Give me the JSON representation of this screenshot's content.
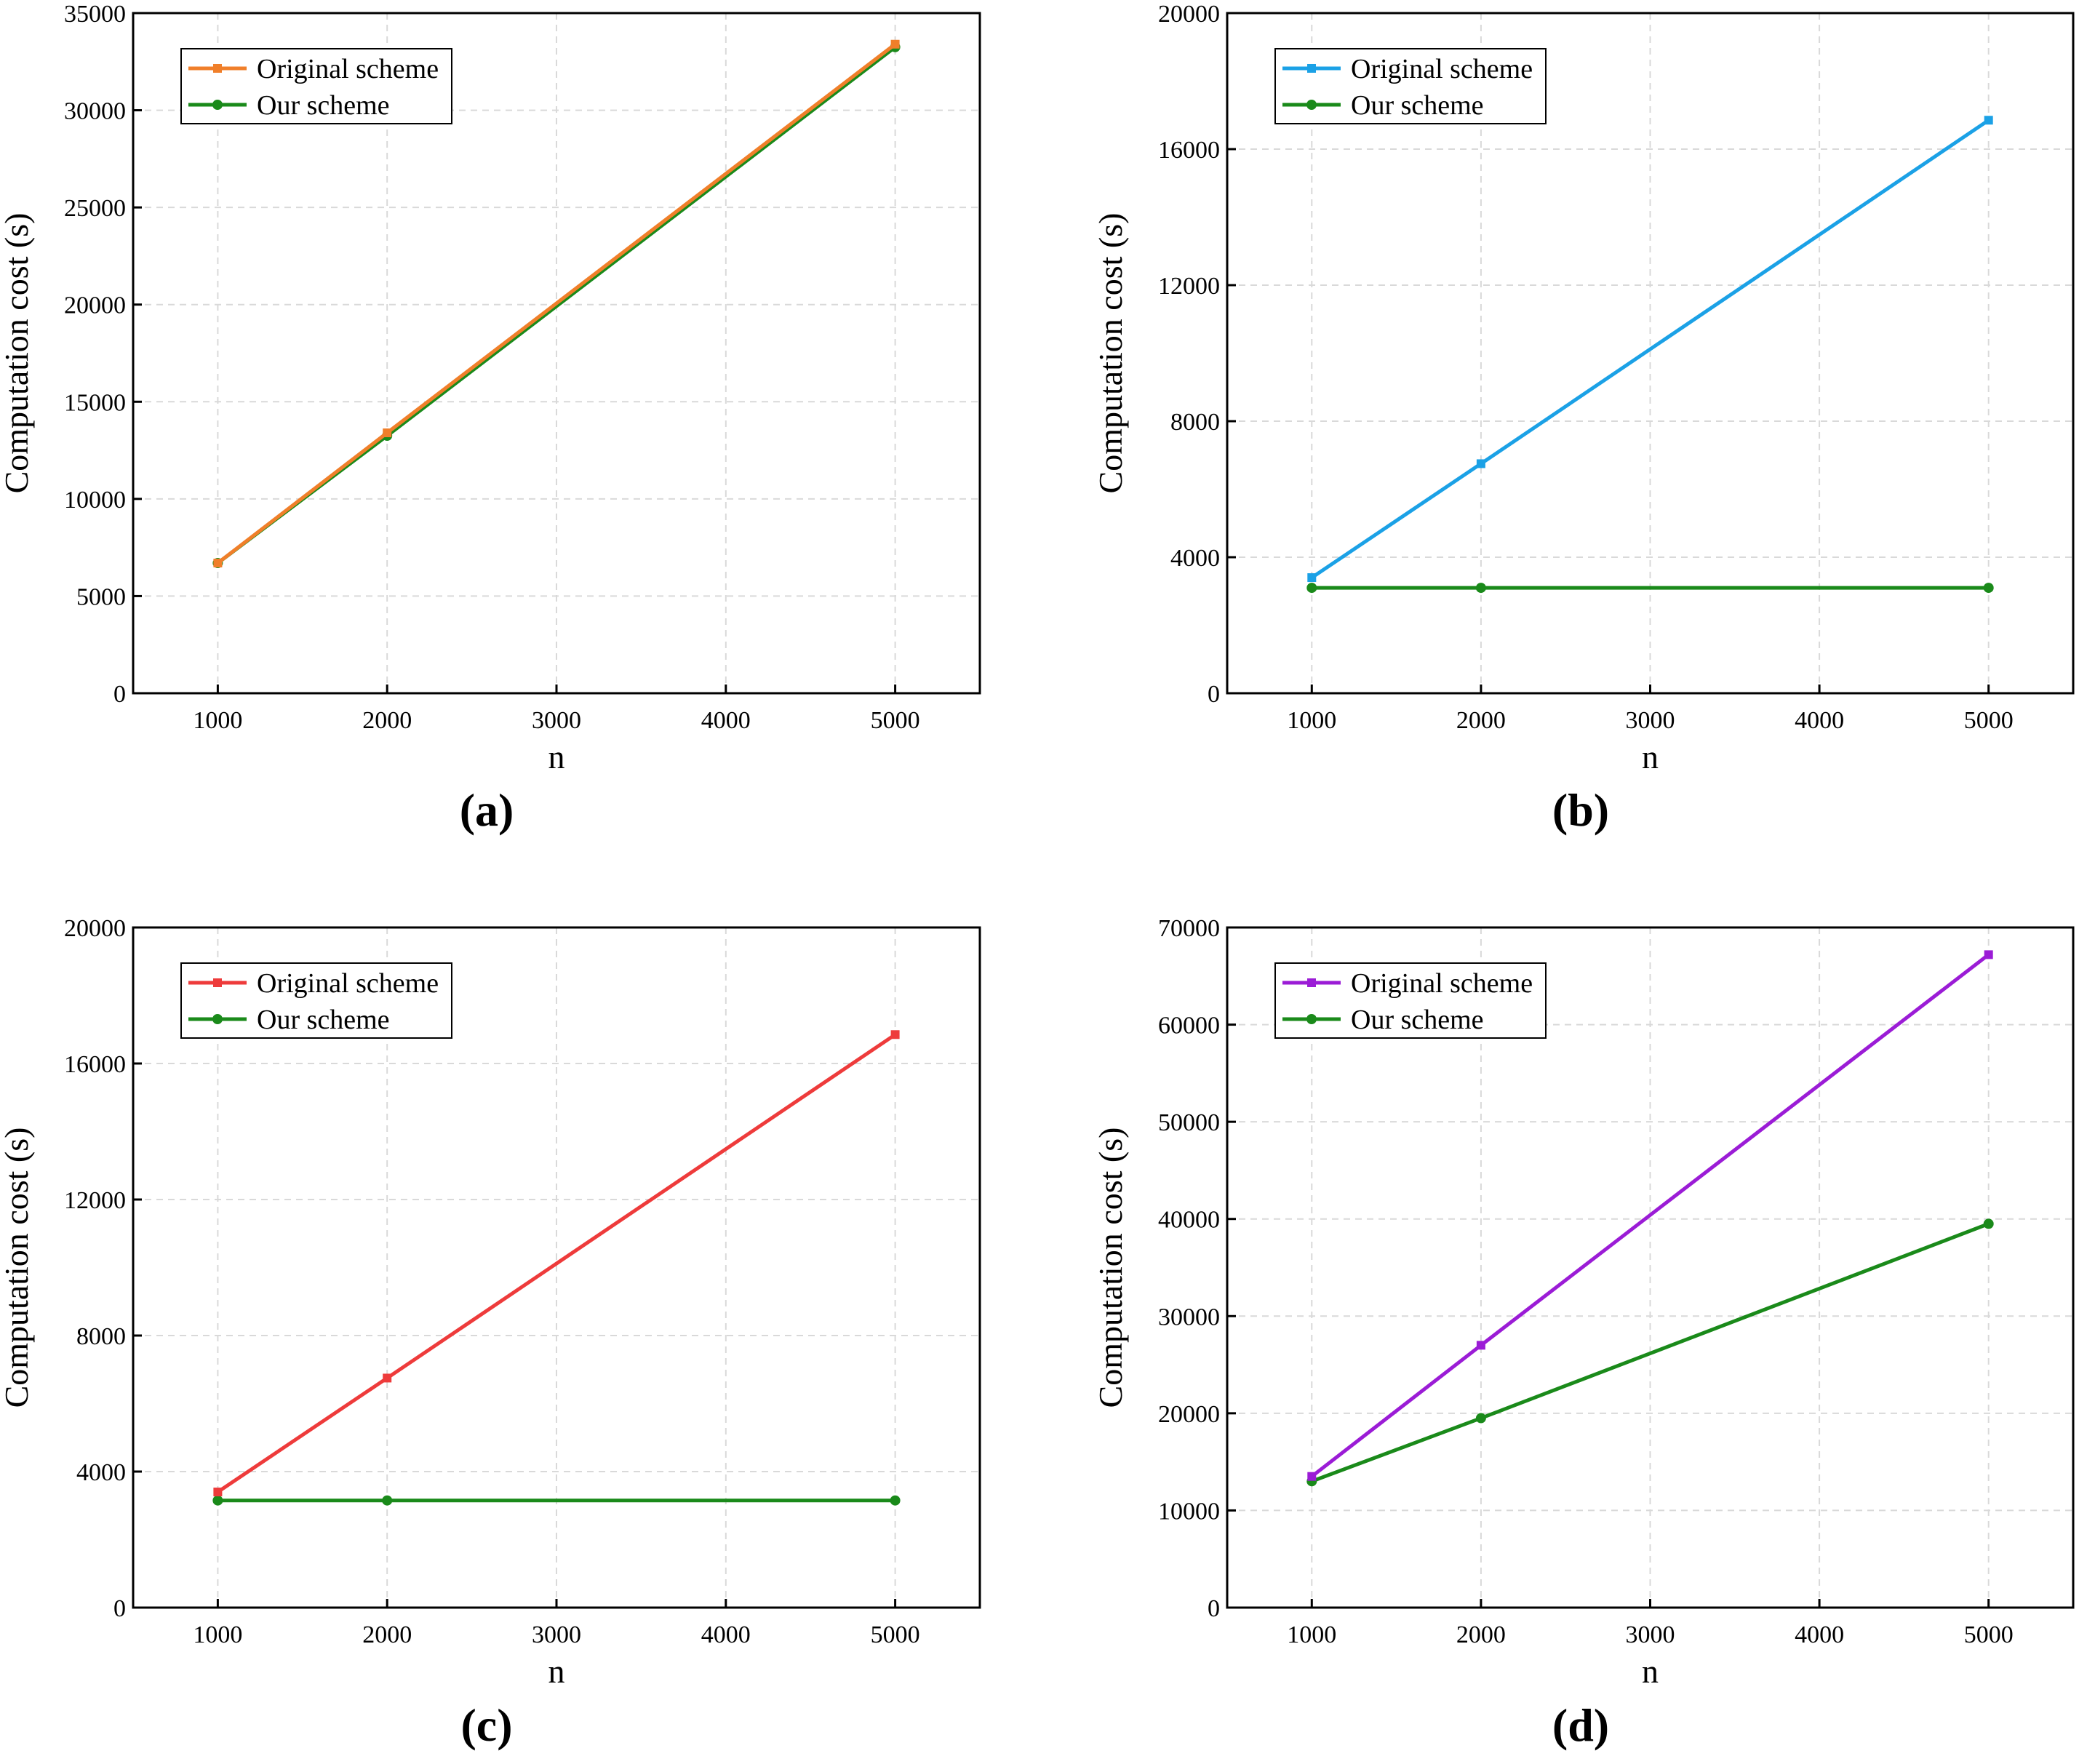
{
  "chart_data": [
    {
      "type": "line",
      "panel_label": "(a)",
      "xlabel": "n",
      "ylabel": "Computation cost (s)",
      "x": [
        1000,
        2000,
        5000
      ],
      "xticks": [
        "1000",
        "2000",
        "3000",
        "4000",
        "5000"
      ],
      "yticks": [
        "0",
        "5000",
        "10000",
        "15000",
        "20000",
        "25000",
        "30000",
        "35000"
      ],
      "xlim": [
        500,
        5500
      ],
      "ylim": [
        0,
        35000
      ],
      "legend_position": "top-left",
      "series": [
        {
          "name": "Original scheme",
          "color": "#f07f2a",
          "marker": "square",
          "values": [
            6700,
            13400,
            33400
          ]
        },
        {
          "name": "Our scheme",
          "color": "#1a8a1a",
          "marker": "circle",
          "values": [
            6700,
            13250,
            33250
          ]
        }
      ]
    },
    {
      "type": "line",
      "panel_label": "(b)",
      "xlabel": "n",
      "ylabel": "Computation cost (s)",
      "x": [
        1000,
        2000,
        5000
      ],
      "xticks": [
        "1000",
        "2000",
        "3000",
        "4000",
        "5000"
      ],
      "yticks": [
        "0",
        "4000",
        "8000",
        "12000",
        "16000",
        "20000"
      ],
      "xlim": [
        500,
        5500
      ],
      "ylim": [
        0,
        20000
      ],
      "legend_position": "top-left",
      "series": [
        {
          "name": "Original scheme",
          "color": "#1ba1e6",
          "marker": "square",
          "values": [
            3400,
            6750,
            16850
          ]
        },
        {
          "name": "Our scheme",
          "color": "#1a8a1a",
          "marker": "circle",
          "values": [
            3100,
            3100,
            3100
          ]
        }
      ]
    },
    {
      "type": "line",
      "panel_label": "(c)",
      "xlabel": "n",
      "ylabel": "Computation cost (s)",
      "x": [
        1000,
        2000,
        5000
      ],
      "xticks": [
        "1000",
        "2000",
        "3000",
        "4000",
        "5000"
      ],
      "yticks": [
        "0",
        "4000",
        "8000",
        "12000",
        "16000",
        "20000"
      ],
      "xlim": [
        500,
        5500
      ],
      "ylim": [
        0,
        20000
      ],
      "legend_position": "top-left",
      "series": [
        {
          "name": "Original scheme",
          "color": "#ee3b3b",
          "marker": "square",
          "values": [
            3400,
            6750,
            16850
          ]
        },
        {
          "name": "Our scheme",
          "color": "#1a8a1a",
          "marker": "circle",
          "values": [
            3150,
            3150,
            3150
          ]
        }
      ]
    },
    {
      "type": "line",
      "panel_label": "(d)",
      "xlabel": "n",
      "ylabel": "Computation cost (s)",
      "x": [
        1000,
        2000,
        5000
      ],
      "xticks": [
        "1000",
        "2000",
        "3000",
        "4000",
        "5000"
      ],
      "yticks": [
        "0",
        "10000",
        "20000",
        "30000",
        "40000",
        "50000",
        "60000",
        "70000"
      ],
      "xlim": [
        500,
        5500
      ],
      "ylim": [
        0,
        70000
      ],
      "legend_position": "top-left",
      "series": [
        {
          "name": "Original scheme",
          "color": "#9b1cd6",
          "marker": "square",
          "values": [
            13500,
            27000,
            67200
          ]
        },
        {
          "name": "Our scheme",
          "color": "#1a8a1a",
          "marker": "circle",
          "values": [
            13000,
            19500,
            39500
          ]
        }
      ]
    }
  ]
}
